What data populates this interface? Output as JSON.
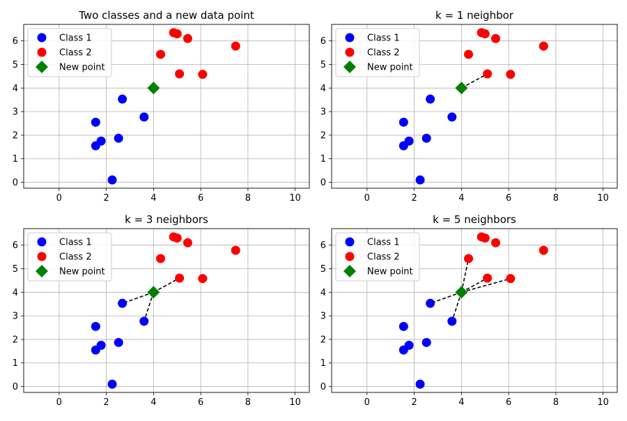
{
  "chart_data": [
    {
      "type": "scatter",
      "title": "Two classes and a new data point",
      "xlabel": "",
      "ylabel": "",
      "xlim": [
        -1.5,
        10.6
      ],
      "ylim": [
        -0.25,
        6.7
      ],
      "xticks": [
        0,
        2,
        4,
        6,
        8,
        10
      ],
      "yticks": [
        0,
        1,
        2,
        3,
        4,
        5,
        6
      ],
      "grid": true,
      "legend_position": "top-left",
      "series": [
        {
          "name": "Class 1",
          "color": "#0000ff",
          "marker": "circle",
          "points": [
            [
              1.55,
              2.55
            ],
            [
              1.55,
              1.55
            ],
            [
              1.78,
              1.75
            ],
            [
              2.52,
              1.87
            ],
            [
              2.68,
              3.53
            ],
            [
              3.6,
              2.77
            ],
            [
              2.25,
              0.1
            ]
          ]
        },
        {
          "name": "Class 2",
          "color": "#ff0000",
          "marker": "circle",
          "points": [
            [
              4.85,
              6.35
            ],
            [
              5.0,
              6.3
            ],
            [
              5.45,
              6.1
            ],
            [
              7.48,
              5.78
            ],
            [
              4.3,
              5.43
            ],
            [
              5.1,
              4.6
            ],
            [
              6.08,
              4.58
            ]
          ]
        },
        {
          "name": "New point",
          "color": "#008000",
          "marker": "diamond",
          "points": [
            [
              4.0,
              4.0
            ]
          ]
        }
      ],
      "neighbor_lines": []
    },
    {
      "type": "scatter",
      "title": "k = 1 neighbor",
      "xlabel": "",
      "ylabel": "",
      "xlim": [
        -1.5,
        10.6
      ],
      "ylim": [
        -0.25,
        6.7
      ],
      "xticks": [
        0,
        2,
        4,
        6,
        8,
        10
      ],
      "yticks": [
        0,
        1,
        2,
        3,
        4,
        5,
        6
      ],
      "grid": true,
      "legend_position": "top-left",
      "series": [
        {
          "name": "Class 1",
          "color": "#0000ff",
          "marker": "circle",
          "points": [
            [
              1.55,
              2.55
            ],
            [
              1.55,
              1.55
            ],
            [
              1.78,
              1.75
            ],
            [
              2.52,
              1.87
            ],
            [
              2.68,
              3.53
            ],
            [
              3.6,
              2.77
            ],
            [
              2.25,
              0.1
            ]
          ]
        },
        {
          "name": "Class 2",
          "color": "#ff0000",
          "marker": "circle",
          "points": [
            [
              4.85,
              6.35
            ],
            [
              5.0,
              6.3
            ],
            [
              5.45,
              6.1
            ],
            [
              7.48,
              5.78
            ],
            [
              4.3,
              5.43
            ],
            [
              5.1,
              4.6
            ],
            [
              6.08,
              4.58
            ]
          ]
        },
        {
          "name": "New point",
          "color": "#008000",
          "marker": "diamond",
          "points": [
            [
              4.0,
              4.0
            ]
          ]
        }
      ],
      "neighbor_lines": [
        [
          5.1,
          4.6
        ]
      ]
    },
    {
      "type": "scatter",
      "title": "k = 3 neighbors",
      "xlabel": "",
      "ylabel": "",
      "xlim": [
        -1.5,
        10.6
      ],
      "ylim": [
        -0.25,
        6.7
      ],
      "xticks": [
        0,
        2,
        4,
        6,
        8,
        10
      ],
      "yticks": [
        0,
        1,
        2,
        3,
        4,
        5,
        6
      ],
      "grid": true,
      "legend_position": "top-left",
      "series": [
        {
          "name": "Class 1",
          "color": "#0000ff",
          "marker": "circle",
          "points": [
            [
              1.55,
              2.55
            ],
            [
              1.55,
              1.55
            ],
            [
              1.78,
              1.75
            ],
            [
              2.52,
              1.87
            ],
            [
              2.68,
              3.53
            ],
            [
              3.6,
              2.77
            ],
            [
              2.25,
              0.1
            ]
          ]
        },
        {
          "name": "Class 2",
          "color": "#ff0000",
          "marker": "circle",
          "points": [
            [
              4.85,
              6.35
            ],
            [
              5.0,
              6.3
            ],
            [
              5.45,
              6.1
            ],
            [
              7.48,
              5.78
            ],
            [
              4.3,
              5.43
            ],
            [
              5.1,
              4.6
            ],
            [
              6.08,
              4.58
            ]
          ]
        },
        {
          "name": "New point",
          "color": "#008000",
          "marker": "diamond",
          "points": [
            [
              4.0,
              4.0
            ]
          ]
        }
      ],
      "neighbor_lines": [
        [
          5.1,
          4.6
        ],
        [
          2.68,
          3.53
        ],
        [
          3.6,
          2.77
        ]
      ]
    },
    {
      "type": "scatter",
      "title": "k = 5 neighbors",
      "xlabel": "",
      "ylabel": "",
      "xlim": [
        -1.5,
        10.6
      ],
      "ylim": [
        -0.25,
        6.7
      ],
      "xticks": [
        0,
        2,
        4,
        6,
        8,
        10
      ],
      "yticks": [
        0,
        1,
        2,
        3,
        4,
        5,
        6
      ],
      "grid": true,
      "legend_position": "top-left",
      "series": [
        {
          "name": "Class 1",
          "color": "#0000ff",
          "marker": "circle",
          "points": [
            [
              1.55,
              2.55
            ],
            [
              1.55,
              1.55
            ],
            [
              1.78,
              1.75
            ],
            [
              2.52,
              1.87
            ],
            [
              2.68,
              3.53
            ],
            [
              3.6,
              2.77
            ],
            [
              2.25,
              0.1
            ]
          ]
        },
        {
          "name": "Class 2",
          "color": "#ff0000",
          "marker": "circle",
          "points": [
            [
              4.85,
              6.35
            ],
            [
              5.0,
              6.3
            ],
            [
              5.45,
              6.1
            ],
            [
              7.48,
              5.78
            ],
            [
              4.3,
              5.43
            ],
            [
              5.1,
              4.6
            ],
            [
              6.08,
              4.58
            ]
          ]
        },
        {
          "name": "New point",
          "color": "#008000",
          "marker": "diamond",
          "points": [
            [
              4.0,
              4.0
            ]
          ]
        }
      ],
      "neighbor_lines": [
        [
          5.1,
          4.6
        ],
        [
          2.68,
          3.53
        ],
        [
          3.6,
          2.77
        ],
        [
          4.3,
          5.43
        ],
        [
          6.08,
          4.58
        ]
      ]
    }
  ]
}
